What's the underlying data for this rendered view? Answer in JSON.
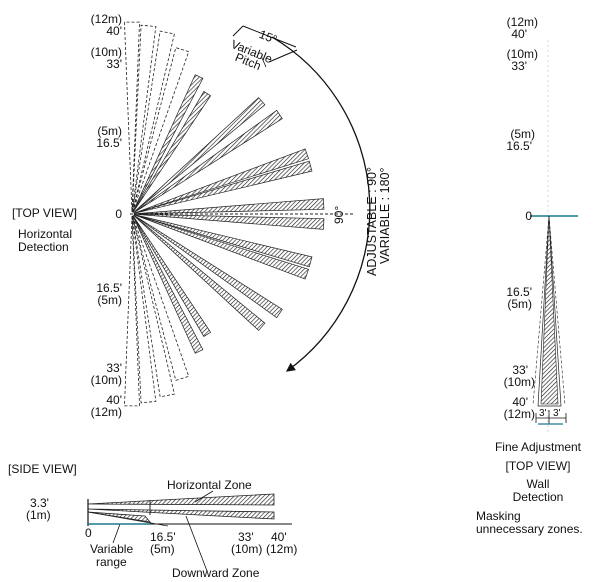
{
  "top_view": {
    "y_ticks": [
      {
        "ft": "40'",
        "m": "(12m)"
      },
      {
        "ft": "33'",
        "m": "(10m)"
      },
      {
        "ft": "16.5'",
        "m": "(5m)"
      },
      {
        "ft": "0"
      },
      {
        "ft": "16.5'",
        "m": "(5m)"
      },
      {
        "ft": "33'",
        "m": "(10m)"
      },
      {
        "ft": "40'",
        "m": "(12m)"
      }
    ],
    "view_label": "[TOP VIEW]",
    "title_line1": "Horizontal",
    "title_line2": "Detection",
    "pitch_angle": "15°",
    "pitch_line1": "Variable",
    "pitch_line2": "Pitch",
    "center_angle": "90°",
    "adjustable": "ADJUSTABLE : 90°",
    "variable": "VARIABLE : 180°"
  },
  "side_view": {
    "view_label": "[SIDE VIEW]",
    "height_ft": "3.3'",
    "height_m": "(1m)",
    "horizontal_zone": "Horizontal Zone",
    "downward_zone": "Downward Zone",
    "variable_range_line1": "Variable",
    "variable_range_line2": "range",
    "x_ticks": [
      {
        "ft": "0"
      },
      {
        "ft": "16.5'",
        "m": "(5m)"
      },
      {
        "ft": "33'",
        "m": "(10m)"
      },
      {
        "ft": "40'",
        "m": "(12m)"
      }
    ]
  },
  "wall_view": {
    "y_ticks": [
      {
        "ft": "40'",
        "m": "(12m)"
      },
      {
        "ft": "33'",
        "m": "(10m)"
      },
      {
        "ft": "16.5'",
        "m": "(5m)"
      },
      {
        "ft": "0"
      },
      {
        "ft": "16.5'",
        "m": "(5m)"
      },
      {
        "ft": "33'",
        "m": "(10m)"
      },
      {
        "ft": "40'",
        "m": "(12m)"
      }
    ],
    "width_label_left": "3'",
    "width_label_right": "3'",
    "fine_adjustment": "Fine Adjustment",
    "view_label": "[TOP VIEW]",
    "title_line1": "Wall",
    "title_line2": "Detection",
    "masking_line1": "Masking",
    "masking_line2": "unnecessary zones."
  }
}
